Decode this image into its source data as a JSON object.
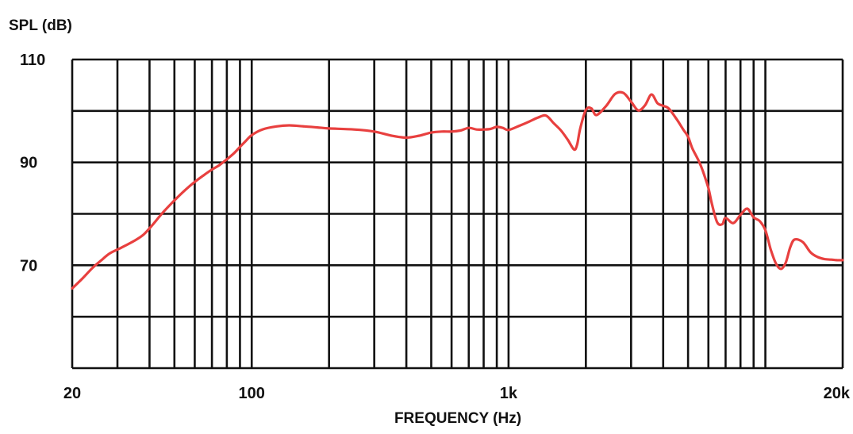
{
  "chart_data": {
    "type": "line",
    "ylabel": "SPL (dB)",
    "xlabel": "FREQUENCY (Hz)",
    "x_scale": "log",
    "xlim": [
      20,
      20000
    ],
    "ylim": [
      50,
      110
    ],
    "grid": true,
    "y_ticks": [
      {
        "value": 110,
        "label": "110"
      },
      {
        "value": 90,
        "label": "90"
      },
      {
        "value": 70,
        "label": "70"
      }
    ],
    "x_ticks": [
      {
        "value": 20,
        "label": "20"
      },
      {
        "value": 100,
        "label": "100"
      },
      {
        "value": 1000,
        "label": "1k"
      },
      {
        "value": 20000,
        "label": "20k"
      }
    ],
    "y_gridlines": [
      50,
      60,
      70,
      80,
      90,
      100,
      110
    ],
    "x_gridlines": [
      20,
      30,
      40,
      50,
      60,
      70,
      80,
      90,
      100,
      200,
      300,
      400,
      500,
      600,
      700,
      800,
      900,
      1000,
      2000,
      3000,
      4000,
      5000,
      6000,
      7000,
      8000,
      9000,
      10000,
      20000
    ],
    "line_color": "#e8403f",
    "series": [
      {
        "x": [
          20,
          22,
          24,
          26,
          28,
          31,
          35,
          38,
          41,
          45,
          50,
          55,
          60,
          65,
          70,
          75,
          80,
          85,
          90,
          95,
          100,
          110,
          125,
          140,
          160,
          180,
          200,
          250,
          300,
          350,
          400,
          450,
          500,
          550,
          600,
          650,
          700,
          750,
          800,
          850,
          900,
          950,
          1000,
          1100,
          1200,
          1300,
          1400,
          1500,
          1600,
          1700,
          1800,
          1850,
          1900,
          2000,
          2100,
          2200,
          2400,
          2600,
          2800,
          3000,
          3200,
          3400,
          3600,
          3800,
          4000,
          4200,
          4500,
          4800,
          5000,
          5200,
          5500,
          5700,
          6000,
          6200,
          6500,
          6800,
          7000,
          7500,
          8000,
          8500,
          9000,
          9500,
          10000,
          10500,
          11000,
          11500,
          12000,
          12500,
          13000,
          14000,
          15000,
          16000,
          17000,
          18000,
          19000,
          20000
        ],
        "y": [
          65.5,
          67.5,
          69.5,
          71,
          72.3,
          73.4,
          74.8,
          76,
          77.8,
          80.2,
          82.6,
          84.6,
          86.2,
          87.5,
          88.6,
          89.5,
          90.6,
          91.7,
          93,
          94.2,
          95.3,
          96.4,
          97,
          97.2,
          97,
          96.8,
          96.6,
          96.4,
          96,
          95.2,
          94.8,
          95.2,
          95.8,
          96,
          96,
          96.2,
          96.7,
          96.4,
          96.4,
          96.5,
          96.9,
          96.7,
          96.3,
          97.1,
          97.9,
          98.7,
          99.1,
          97.6,
          96.2,
          94.4,
          92.5,
          93.5,
          96.5,
          100.2,
          100.5,
          99.2,
          101,
          103.3,
          103.5,
          101.8,
          100.1,
          101.1,
          103.2,
          101.5,
          101,
          100.5,
          98.5,
          96.3,
          95,
          92.7,
          90.3,
          88.4,
          85,
          81.8,
          78.3,
          78,
          79.2,
          78.2,
          79.8,
          81,
          79.3,
          78.6,
          76.8,
          73,
          70.3,
          69.3,
          70.5,
          73.5,
          75,
          74.5,
          72.5,
          71.6,
          71.2,
          71.1,
          71.0,
          71.0
        ]
      }
    ]
  }
}
